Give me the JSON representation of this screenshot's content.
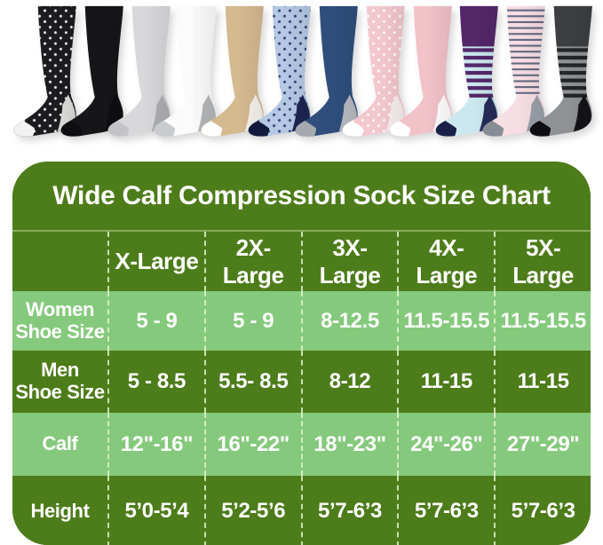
{
  "colors": {
    "dark_green": "#4d7c1a",
    "light_green": "#85c97c",
    "text_white": "#ffffff",
    "dash_green": "#dff2cd"
  },
  "socks": [
    {
      "name": "black-polka-dot",
      "base": "#1c1c1e",
      "dots": "#f5f5f5",
      "heel": "#dededd",
      "toe": "#f2f2f2"
    },
    {
      "name": "black",
      "base": "#161618",
      "heel": "#0e0e10",
      "toe": "#0e0e10"
    },
    {
      "name": "heather-gray",
      "base": "#d8d8da",
      "heel": "#aeaeb0",
      "toe": "#c4c4c6"
    },
    {
      "name": "white",
      "base": "#fbfbfb",
      "heel": "#b4b6b8",
      "toe": "#c9cbcd"
    },
    {
      "name": "khaki",
      "base": "#d5b98f",
      "heel": "#f5f2ec",
      "toe": "#ffffff"
    },
    {
      "name": "light-blue-dot",
      "base": "#b5c8e4",
      "dots": "#2e3c6e",
      "heel": "#1c2650",
      "toe": "#131b3d"
    },
    {
      "name": "navy",
      "base": "#2f4e7c",
      "heel": "#b7babf",
      "toe": "#a6aaaf"
    },
    {
      "name": "pink-dot",
      "base": "#f3c7ce",
      "dots": "#ffffff",
      "heel": "#f7efee",
      "toe": "#ffffff"
    },
    {
      "name": "pink",
      "base": "#f2c2c9",
      "heel": "#ffffff",
      "toe": "#ffffff"
    },
    {
      "name": "purple-mint-stripe",
      "base": "#cbe8f1",
      "top": "#542769",
      "stripeColor": "#542769",
      "heel": "#272d59",
      "toe": "#1b2048"
    },
    {
      "name": "pink-stripe",
      "base": "#f7dee4",
      "stripeColor": "#646a80",
      "thin": true,
      "heel": "#9aa0a8",
      "toe": "#878d94"
    },
    {
      "name": "gray-stripe",
      "base": "#8f9194",
      "top": "#3d3e41",
      "stripeColor": "#242529",
      "heel": "#141416",
      "toe": "#0e0e10"
    }
  ],
  "size_chart": {
    "title": "Wide Calf Compression Sock Size Chart",
    "columns": [
      "X-Large",
      "2X-Large",
      "3X-Large",
      "4X- Large",
      "5X- Large"
    ],
    "rows": [
      {
        "label": "Women\nShoe Size",
        "values": [
          "5 - 9",
          "5 - 9",
          "8-12.5",
          "11.5-15.5",
          "11.5-15.5"
        ]
      },
      {
        "label": "Men\nShoe Size",
        "values": [
          "5 - 8.5",
          "5.5- 8.5",
          "8-12",
          "11-15",
          "11-15"
        ]
      },
      {
        "label": "Calf",
        "values": [
          "12\"-16\"",
          "16\"-22\"",
          "18\"-23\"",
          "24\"-26\"",
          "27\"-29\""
        ]
      },
      {
        "label": "Height",
        "values": [
          "5’0-5’4",
          "5’2-5’6",
          "5’7-6’3",
          "5’7-6’3",
          "5’7-6’3"
        ]
      }
    ]
  },
  "chart_data": {
    "type": "table",
    "title": "Wide Calf Compression Sock Size Chart",
    "columns": [
      "",
      "X-Large",
      "2X-Large",
      "3X-Large",
      "4X- Large",
      "5X- Large"
    ],
    "rows": [
      [
        "Women Shoe Size",
        "5 - 9",
        "5 - 9",
        "8-12.5",
        "11.5-15.5",
        "11.5-15.5"
      ],
      [
        "Men Shoe Size",
        "5 - 8.5",
        "5.5- 8.5",
        "8-12",
        "11-15",
        "11-15"
      ],
      [
        "Calf",
        "12\"-16\"",
        "16\"-22\"",
        "18\"-23\"",
        "24\"-26\"",
        "27\"-29\""
      ],
      [
        "Height",
        "5’0-5’4",
        "5’2-5’6",
        "5’7-6’3",
        "5’7-6’3",
        "5’7-6’3"
      ]
    ]
  }
}
